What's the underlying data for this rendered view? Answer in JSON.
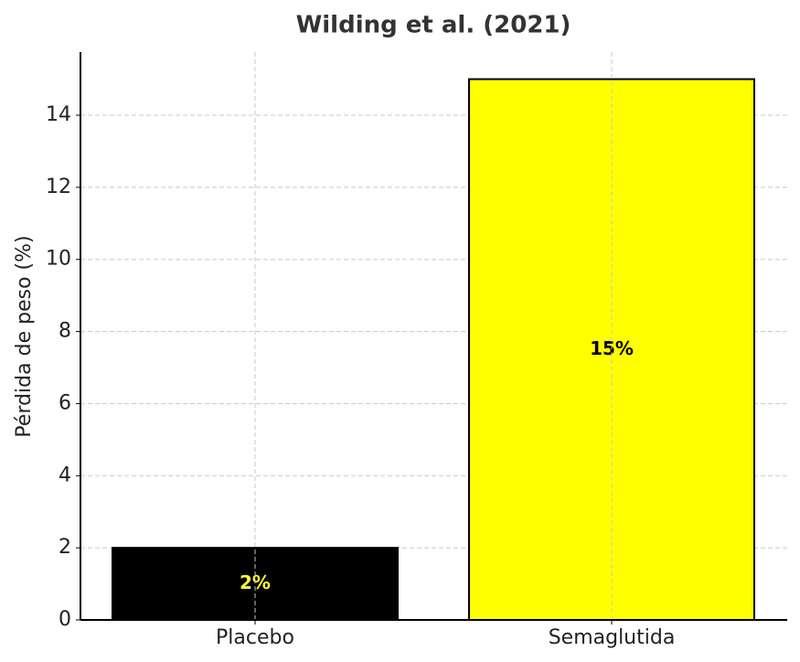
{
  "chart_data": {
    "type": "bar",
    "title": "Wilding et al. (2021)",
    "ylabel": "Pérdida de peso (%)",
    "categories": [
      "Placebo",
      "Semaglutida"
    ],
    "values": [
      2,
      15
    ],
    "value_labels": [
      "2%",
      "15%"
    ],
    "colors": [
      "#000000",
      "#ffff00"
    ],
    "value_label_colors": [
      "#ffff33",
      "#000000"
    ],
    "edgecolor": "#000000",
    "ylim": [
      0,
      15.75
    ],
    "yticks": [
      0,
      2,
      4,
      6,
      8,
      10,
      12,
      14
    ],
    "grid": true
  }
}
